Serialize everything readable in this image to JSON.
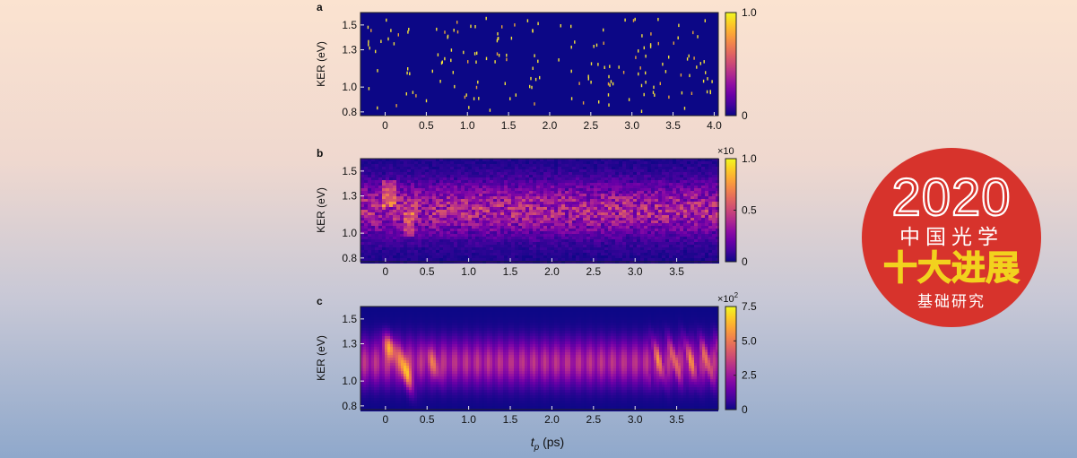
{
  "chart_data": [
    {
      "type": "heatmap",
      "panel_label": "a",
      "variant": "sparse",
      "ylabel": "KER (eV)",
      "xlim": [
        -0.3,
        4.05
      ],
      "ylim": [
        0.77,
        1.6
      ],
      "xticks": [
        0,
        0.5,
        1.0,
        1.5,
        2.0,
        2.5,
        3.0,
        3.5,
        4.0
      ],
      "xtick_labels": [
        "0",
        "0.5",
        "1.0",
        "1.5",
        "2.0",
        "2.5",
        "3.0",
        "3.5",
        "4.0"
      ],
      "yticks": [
        0.8,
        1.0,
        1.3,
        1.5
      ],
      "ytick_labels": [
        "0.8",
        "1.0",
        "1.3",
        "1.5"
      ],
      "colorbar": {
        "ticks": [
          0,
          1.0
        ],
        "tick_labels": [
          "0",
          "1.0"
        ],
        "multiplier": ""
      }
    },
    {
      "type": "heatmap",
      "panel_label": "b",
      "variant": "noisy",
      "ylabel": "KER (eV)",
      "xlim": [
        -0.3,
        4.0
      ],
      "ylim": [
        0.77,
        1.6
      ],
      "xticks": [
        0,
        0.5,
        1.0,
        1.5,
        2.0,
        2.5,
        3.0,
        3.5
      ],
      "xtick_labels": [
        "0",
        "0.5",
        "1.0",
        "1.5",
        "2.0",
        "2.5",
        "3.0",
        "3.5"
      ],
      "yticks": [
        0.8,
        1.0,
        1.3,
        1.5
      ],
      "ytick_labels": [
        "0.8",
        "1.0",
        "1.3",
        "1.5"
      ],
      "colorbar": {
        "ticks": [
          0,
          0.5,
          1.0
        ],
        "tick_labels": [
          "0",
          "0.5",
          "1.0"
        ],
        "multiplier": "×10"
      }
    },
    {
      "type": "heatmap",
      "panel_label": "c",
      "variant": "smooth",
      "ylabel": "KER (eV)",
      "xlabel": "t",
      "xlabel_sub": "p",
      "xlabel_unit": " (ps)",
      "xlim": [
        -0.3,
        4.0
      ],
      "ylim": [
        0.77,
        1.6
      ],
      "xticks": [
        0,
        0.5,
        1.0,
        1.5,
        2.0,
        2.5,
        3.0,
        3.5
      ],
      "xtick_labels": [
        "0",
        "0.5",
        "1.0",
        "1.5",
        "2.0",
        "2.5",
        "3.0",
        "3.5"
      ],
      "yticks": [
        0.8,
        1.0,
        1.3,
        1.5
      ],
      "ytick_labels": [
        "0.8",
        "1.0",
        "1.3",
        "1.5"
      ],
      "colorbar": {
        "ticks": [
          0,
          2.5,
          5.0,
          7.5
        ],
        "tick_labels": [
          "0",
          "2.5",
          "5.0",
          "7.5"
        ],
        "multiplier": "×10",
        "multiplier_exp": "2"
      }
    }
  ],
  "colormap": [
    "#0c0786",
    "#40039c",
    "#6a00a7",
    "#8f0da3",
    "#b02a8f",
    "#cb4777",
    "#e16461",
    "#f2844b",
    "#fca735",
    "#fcce25",
    "#f0f921"
  ],
  "badge": {
    "year": "2020",
    "line1": "中国光学",
    "line2": "十大进展",
    "line3": "基础研究",
    "circle_color": "#d7332c",
    "accent_color": "#f2d21e"
  }
}
